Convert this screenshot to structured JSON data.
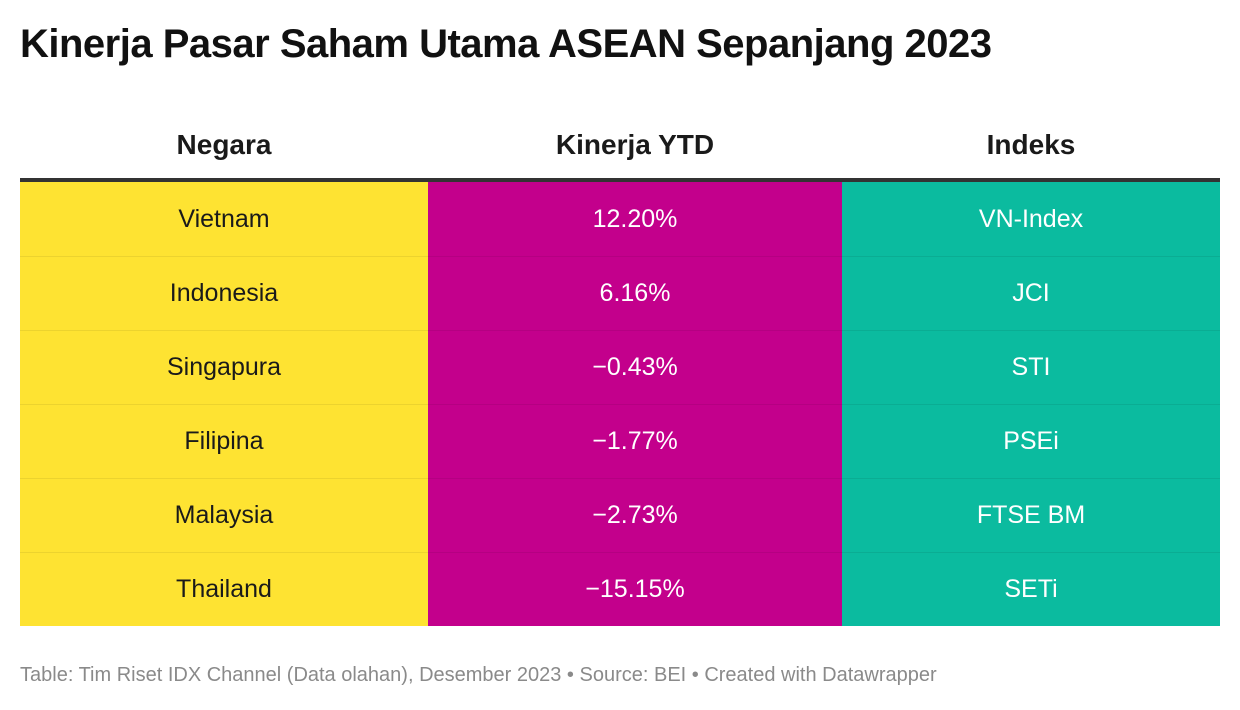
{
  "title": "Kinerja Pasar Saham Utama ASEAN Sepanjang 2023",
  "colors": {
    "col_negara": "#fee332",
    "col_kinerja": "#c3008c",
    "col_indeks": "#0bbb9f",
    "text_negara": "#1a1a1a",
    "text_other": "#ffffff"
  },
  "chart_data": {
    "type": "table",
    "title": "Kinerja Pasar Saham Utama ASEAN Sepanjang 2023",
    "columns": [
      "Negara",
      "Kinerja YTD",
      "Indeks"
    ],
    "rows": [
      {
        "negara": "Vietnam",
        "kinerja": "12.20%",
        "indeks": "VN-Index"
      },
      {
        "negara": "Indonesia",
        "kinerja": "6.16%",
        "indeks": "JCI"
      },
      {
        "negara": "Singapura",
        "kinerja": "−0.43%",
        "indeks": "STI"
      },
      {
        "negara": "Filipina",
        "kinerja": "−1.77%",
        "indeks": "PSEi"
      },
      {
        "negara": "Malaysia",
        "kinerja": "−2.73%",
        "indeks": "FTSE BM"
      },
      {
        "negara": "Thailand",
        "kinerja": "−15.15%",
        "indeks": "SETi"
      }
    ],
    "values": [
      12.2,
      6.16,
      -0.43,
      -1.77,
      -2.73,
      -15.15
    ]
  },
  "footer": "Table: Tim Riset IDX Channel (Data olahan), Desember 2023 • Source: BEI • Created with Datawrapper"
}
